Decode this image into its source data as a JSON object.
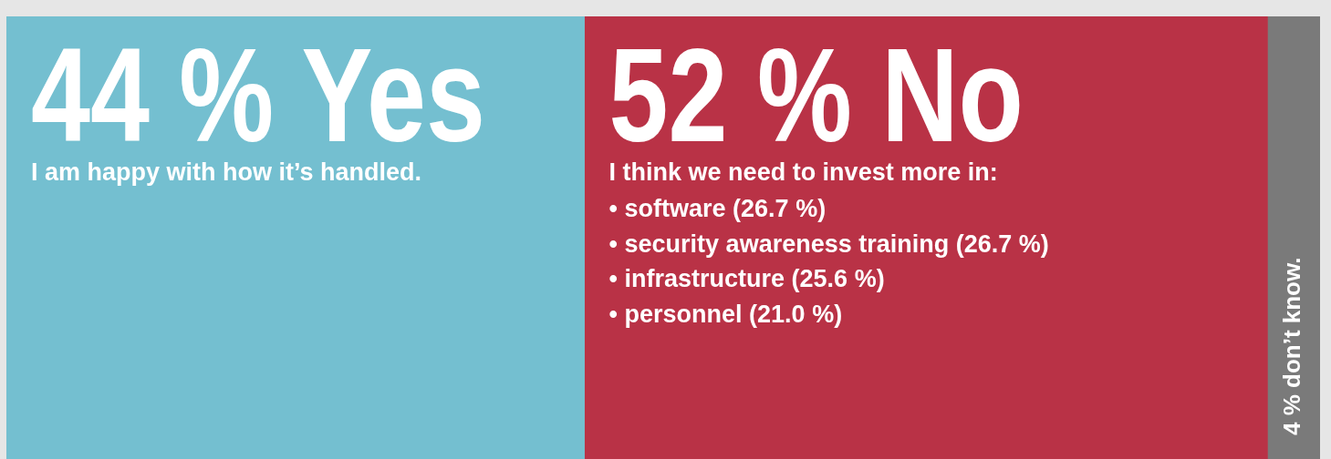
{
  "chart_data": {
    "type": "bar",
    "orientation": "horizontal",
    "stacked": true,
    "categories": [
      null
    ],
    "series": [
      {
        "color": "#74bfd0",
        "values": [
          44
        ],
        "value_labels": [
          "44 % Yes"
        ]
      },
      {
        "color": "#b93246",
        "values": [
          52
        ],
        "value_labels": [
          "52 % No"
        ]
      },
      {
        "color": "#7a7a7a",
        "values": [
          4
        ],
        "value_labels": [
          "4 % don’t know."
        ]
      }
    ],
    "annotations": [
      "I am happy with how it’s handled.",
      "I think we need to invest more in:",
      "• software (26.7 %)",
      "• security awareness training (26.7 %)",
      "• infrastructure (25.6 %)",
      "• personnel (21.0 %)"
    ],
    "legend": false,
    "tick_labels": false
  }
}
